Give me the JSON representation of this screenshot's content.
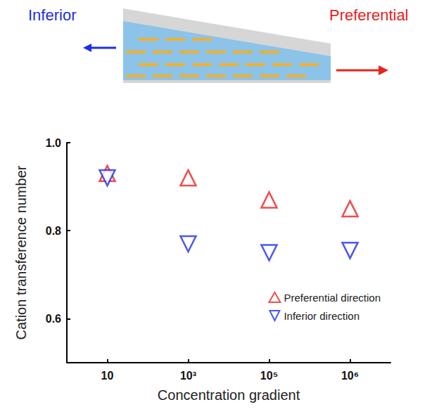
{
  "chart_data": {
    "type": "scatter",
    "x_label": "Concentration gradient",
    "y_label": "Cation transference number",
    "categories": [
      "10",
      "10³",
      "10⁵",
      "10⁶"
    ],
    "series": [
      {
        "name": "Preferential direction",
        "color": "#e8231f",
        "marker": "triangle-up",
        "values": [
          0.93,
          0.92,
          0.87,
          0.85
        ]
      },
      {
        "name": "Inferior direction",
        "color": "#1f2ee8",
        "marker": "triangle-down",
        "values": [
          0.92,
          0.77,
          0.75,
          0.755
        ]
      }
    ],
    "ylim": [
      0.5,
      1.0
    ],
    "yticks": [
      0.6,
      0.8,
      {
        "value": 1.0,
        "label": "1.0"
      }
    ],
    "grid": false,
    "legend": "lower right",
    "annotations": [
      {
        "text": "Inferior",
        "color": "#1f2ee8"
      },
      {
        "text": "Preferential",
        "color": "#e8231f"
      }
    ]
  }
}
